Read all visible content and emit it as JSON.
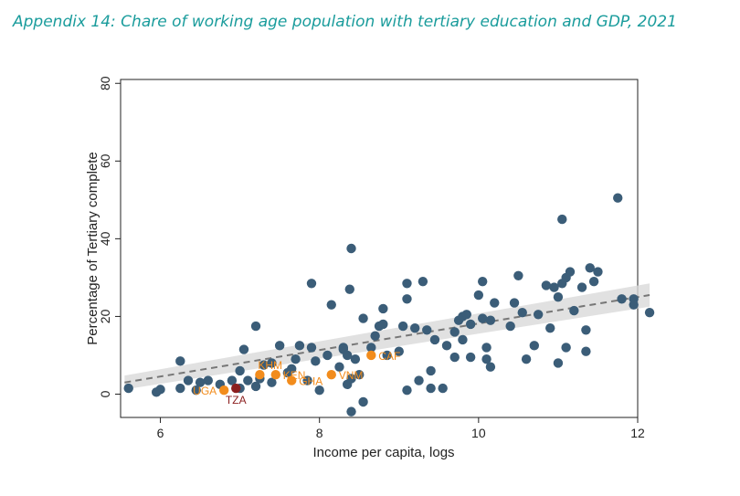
{
  "title": "Appendix 14: Chare of working age population with tertiary education and GDP, 2021",
  "colors": {
    "title": "#1a9c9c",
    "other": "#3b5d78",
    "highlight": "#f28c1c",
    "highlight_label": "#f28c1c",
    "tza": "#8b1f1f",
    "fit": "#777777",
    "ci": "#d9d9d9"
  },
  "chart_data": {
    "type": "scatter",
    "xlabel": "Income per capita, logs",
    "ylabel": "Percentage of Tertiary complete",
    "xlim": [
      5.5,
      12
    ],
    "ylim": [
      -6,
      81
    ],
    "xticks": [
      6,
      8,
      10,
      12
    ],
    "yticks": [
      0,
      20,
      40,
      60,
      80
    ],
    "grid": false,
    "series": [
      {
        "name": "others",
        "points": [
          [
            5.6,
            1.5
          ],
          [
            5.95,
            0.5
          ],
          [
            6.0,
            1.2
          ],
          [
            6.25,
            8.5
          ],
          [
            6.25,
            1.5
          ],
          [
            6.35,
            3.5
          ],
          [
            6.45,
            1.0
          ],
          [
            6.5,
            3.0
          ],
          [
            6.6,
            3.5
          ],
          [
            6.75,
            2.5
          ],
          [
            6.9,
            3.5
          ],
          [
            7.0,
            1.5
          ],
          [
            7.0,
            6.0
          ],
          [
            7.05,
            11.5
          ],
          [
            7.1,
            3.5
          ],
          [
            7.2,
            17.5
          ],
          [
            7.2,
            2.0
          ],
          [
            7.25,
            4.0
          ],
          [
            7.3,
            7.5
          ],
          [
            7.4,
            3.0
          ],
          [
            7.4,
            8.0
          ],
          [
            7.5,
            12.5
          ],
          [
            7.6,
            5.5
          ],
          [
            7.65,
            6.5
          ],
          [
            7.7,
            9.0
          ],
          [
            7.75,
            12.5
          ],
          [
            7.85,
            3.5
          ],
          [
            7.9,
            28.5
          ],
          [
            7.9,
            12.0
          ],
          [
            7.95,
            8.5
          ],
          [
            8.0,
            1.0
          ],
          [
            8.1,
            10.0
          ],
          [
            8.15,
            23.0
          ],
          [
            8.25,
            7.0
          ],
          [
            8.3,
            11.5
          ],
          [
            8.3,
            12.0
          ],
          [
            8.35,
            10.0
          ],
          [
            8.35,
            2.5
          ],
          [
            8.38,
            27.0
          ],
          [
            8.4,
            37.5
          ],
          [
            8.4,
            4.0
          ],
          [
            8.4,
            -4.5
          ],
          [
            8.45,
            9.0
          ],
          [
            8.5,
            5.0
          ],
          [
            8.55,
            -2.0
          ],
          [
            8.55,
            19.5
          ],
          [
            8.65,
            12.0
          ],
          [
            8.7,
            15.0
          ],
          [
            8.75,
            17.5
          ],
          [
            8.8,
            18.0
          ],
          [
            8.8,
            22.0
          ],
          [
            8.85,
            10.0
          ],
          [
            9.0,
            11.0
          ],
          [
            9.05,
            17.5
          ],
          [
            9.1,
            28.5
          ],
          [
            9.1,
            24.5
          ],
          [
            9.1,
            1.0
          ],
          [
            9.2,
            17.0
          ],
          [
            9.25,
            3.5
          ],
          [
            9.3,
            29.0
          ],
          [
            9.35,
            16.5
          ],
          [
            9.4,
            1.5
          ],
          [
            9.4,
            6.0
          ],
          [
            9.45,
            14.0
          ],
          [
            9.55,
            1.5
          ],
          [
            9.6,
            12.5
          ],
          [
            9.7,
            16.0
          ],
          [
            9.7,
            9.5
          ],
          [
            9.75,
            19.0
          ],
          [
            9.8,
            20.0
          ],
          [
            9.8,
            14.0
          ],
          [
            9.85,
            20.5
          ],
          [
            9.9,
            18.0
          ],
          [
            9.9,
            9.5
          ],
          [
            10.0,
            25.5
          ],
          [
            10.05,
            19.5
          ],
          [
            10.05,
            29.0
          ],
          [
            10.1,
            9.0
          ],
          [
            10.1,
            12.0
          ],
          [
            10.15,
            19.0
          ],
          [
            10.15,
            7.0
          ],
          [
            10.2,
            23.5
          ],
          [
            10.4,
            17.5
          ],
          [
            10.45,
            23.5
          ],
          [
            10.5,
            30.5
          ],
          [
            10.55,
            21.0
          ],
          [
            10.6,
            9.0
          ],
          [
            10.7,
            12.5
          ],
          [
            10.75,
            20.5
          ],
          [
            10.85,
            28.0
          ],
          [
            10.9,
            17.0
          ],
          [
            10.95,
            27.5
          ],
          [
            11.0,
            8.0
          ],
          [
            11.0,
            25.0
          ],
          [
            11.05,
            45.0
          ],
          [
            11.05,
            28.5
          ],
          [
            11.1,
            30.0
          ],
          [
            11.1,
            12.0
          ],
          [
            11.15,
            31.5
          ],
          [
            11.2,
            21.5
          ],
          [
            11.3,
            27.5
          ],
          [
            11.35,
            16.5
          ],
          [
            11.35,
            11.0
          ],
          [
            11.4,
            32.5
          ],
          [
            11.45,
            29.0
          ],
          [
            11.5,
            31.5
          ],
          [
            11.75,
            50.5
          ],
          [
            11.8,
            24.5
          ],
          [
            11.95,
            24.5
          ],
          [
            11.95,
            23.0
          ],
          [
            12.15,
            21.0
          ]
        ]
      },
      {
        "name": "highlighted",
        "points": [
          {
            "x": 7.25,
            "y": 5.0,
            "label": "KHM",
            "label_side": "up-right"
          },
          {
            "x": 7.45,
            "y": 5.0,
            "label": "KEN",
            "label_side": "right"
          },
          {
            "x": 7.65,
            "y": 3.5,
            "label": "GHA",
            "label_side": "right"
          },
          {
            "x": 8.15,
            "y": 5.0,
            "label": "VNM",
            "label_side": "right"
          },
          {
            "x": 8.65,
            "y": 10.0,
            "label": "CAF",
            "label_side": "right"
          },
          {
            "x": 6.8,
            "y": 1.0,
            "label": "UGA",
            "label_side": "left"
          }
        ]
      },
      {
        "name": "tza",
        "points": [
          {
            "x": 6.95,
            "y": 1.5,
            "label": "TZA",
            "label_side": "below"
          }
        ]
      }
    ],
    "fit": {
      "x0": 5.55,
      "y0": 3.0,
      "x1": 12.15,
      "y1": 25.5,
      "ci_start": 1.8,
      "ci_end": 3.0
    }
  }
}
